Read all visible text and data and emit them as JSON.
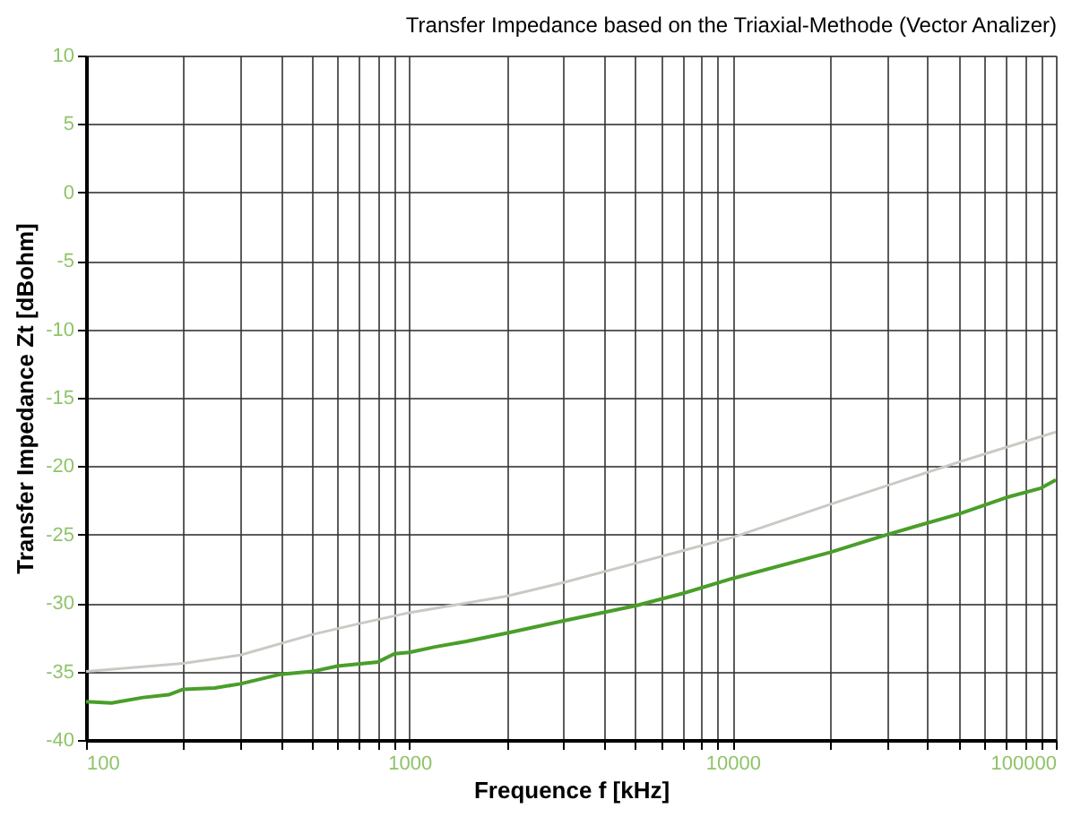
{
  "chart_data": {
    "type": "line",
    "title": "Transfer Impedance based on the Triaxial-Methode (Vector Analizer)",
    "xlabel": "Frequence f [kHz]",
    "ylabel": "Transfer Impedance Zt [dBohm]",
    "log": "x",
    "grid": true,
    "marker": "none",
    "line_style": "solid",
    "xlim": [
      100,
      100000
    ],
    "ylim": [
      -40,
      10
    ],
    "xticks": [
      100,
      {
        "value": 200,
        "label": null
      },
      {
        "value": 300,
        "label": null
      },
      {
        "value": 400,
        "label": null
      },
      {
        "value": 500,
        "label": null
      },
      {
        "value": 600,
        "label": null
      },
      {
        "value": 700,
        "label": null
      },
      {
        "value": 800,
        "label": null
      },
      {
        "value": 900,
        "label": null
      },
      1000,
      {
        "value": 2000,
        "label": null
      },
      {
        "value": 3000,
        "label": null
      },
      {
        "value": 4000,
        "label": null
      },
      {
        "value": 5000,
        "label": null
      },
      {
        "value": 6000,
        "label": null
      },
      {
        "value": 7000,
        "label": null
      },
      {
        "value": 8000,
        "label": null
      },
      {
        "value": 9000,
        "label": null
      },
      10000,
      {
        "value": 20000,
        "label": null
      },
      {
        "value": 30000,
        "label": null
      },
      {
        "value": 40000,
        "label": null
      },
      {
        "value": 50000,
        "label": null
      },
      {
        "value": 60000,
        "label": null
      },
      {
        "value": 70000,
        "label": null
      },
      {
        "value": 80000,
        "label": null
      },
      {
        "value": 90000,
        "label": null
      },
      100000
    ],
    "yticks": [
      -40,
      -35,
      -30,
      -25,
      -20,
      -15,
      -10,
      -5,
      0,
      5,
      10
    ],
    "series": [
      {
        "color": "#c8cbc4",
        "x": [
          100,
          200,
          300,
          500,
          700,
          1000,
          2000,
          3000,
          5000,
          10000,
          20000,
          50000,
          100000
        ],
        "values": [
          -35.0,
          -34.4,
          -33.8,
          -32.3,
          -31.5,
          -30.7,
          -29.5,
          -28.5,
          -27.1,
          -25.2,
          -22.8,
          -19.7,
          -17.5
        ]
      },
      {
        "color": "#4a9e2a",
        "x": [
          100,
          120,
          150,
          180,
          200,
          250,
          300,
          400,
          500,
          600,
          800,
          900,
          1000,
          1200,
          1500,
          2000,
          3000,
          5000,
          7000,
          10000,
          20000,
          30000,
          50000,
          70000,
          90000,
          100000
        ],
        "values": [
          -37.2,
          -37.3,
          -36.9,
          -36.7,
          -36.3,
          -36.2,
          -35.9,
          -35.2,
          -35.0,
          -34.6,
          -34.3,
          -33.7,
          -33.6,
          -33.2,
          -32.8,
          -32.2,
          -31.3,
          -30.2,
          -29.3,
          -28.2,
          -26.3,
          -25.0,
          -23.5,
          -22.3,
          -21.6,
          -21.0
        ]
      }
    ]
  }
}
